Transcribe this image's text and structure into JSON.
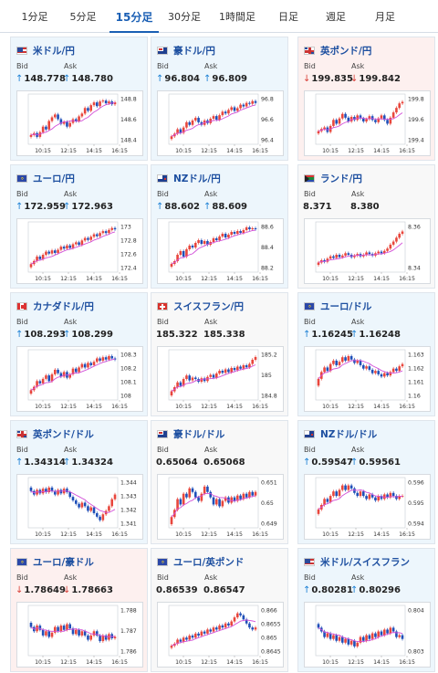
{
  "tabs": [
    {
      "label": "1分足",
      "active": false
    },
    {
      "label": "5分足",
      "active": false
    },
    {
      "label": "15分足",
      "active": true
    },
    {
      "label": "30分足",
      "active": false
    },
    {
      "label": "1時間足",
      "active": false
    },
    {
      "label": "日足",
      "active": false
    },
    {
      "label": "週足",
      "active": false
    },
    {
      "label": "月足",
      "active": false
    }
  ],
  "colors": {
    "up_candle": "#e8463c",
    "down_candle": "#1f4fb8",
    "avg_line": "#d24fd8",
    "accent": "#1a5fb4"
  },
  "labels": {
    "bid": "Bid",
    "ask": "Ask"
  },
  "cards": [
    {
      "pair": "米ドル/円",
      "flag": "us",
      "trend": "up",
      "bid": "148.778",
      "ask": "148.780",
      "chart_data": {
        "type": "candlestick",
        "x_ticks": [
          "10:15",
          "12:15",
          "14:15",
          "16:15"
        ],
        "y_ticks": [
          "148.8",
          "148.6",
          "148.4"
        ],
        "closes": [
          148.43,
          148.45,
          148.41,
          148.46,
          148.52,
          148.49,
          148.58,
          148.62,
          148.65,
          148.6,
          148.55,
          148.57,
          148.52,
          148.56,
          148.6,
          148.58,
          148.63,
          148.66,
          148.72,
          148.69,
          148.75,
          148.78,
          148.74,
          148.79,
          148.8,
          148.77,
          148.79,
          148.76,
          148.78
        ],
        "ylim": [
          148.35,
          148.85
        ]
      }
    },
    {
      "pair": "豪ドル/円",
      "flag": "au",
      "trend": "up",
      "bid": "96.804",
      "ask": "96.809",
      "chart_data": {
        "type": "candlestick",
        "x_ticks": [
          "10:15",
          "12:15",
          "14:15",
          "16:15"
        ],
        "y_ticks": [
          "96.8",
          "96.6",
          "96.4"
        ],
        "closes": [
          96.42,
          96.45,
          96.5,
          96.46,
          96.52,
          96.58,
          96.55,
          96.6,
          96.63,
          96.58,
          96.55,
          96.6,
          96.57,
          96.62,
          96.65,
          96.61,
          96.66,
          96.7,
          96.68,
          96.72,
          96.75,
          96.71,
          96.74,
          96.78,
          96.76,
          96.8,
          96.79,
          96.82,
          96.8
        ],
        "ylim": [
          96.35,
          96.88
        ]
      }
    },
    {
      "pair": "英ポンド/円",
      "flag": "gb",
      "trend": "down",
      "bid": "199.835",
      "ask": "199.842",
      "chart_data": {
        "type": "candlestick",
        "x_ticks": [
          "10:15",
          "12:15",
          "14:15",
          "16:15"
        ],
        "y_ticks": [
          "199.8",
          "199.6",
          "199.4"
        ],
        "closes": [
          199.45,
          199.48,
          199.5,
          199.44,
          199.52,
          199.6,
          199.55,
          199.62,
          199.68,
          199.63,
          199.58,
          199.64,
          199.6,
          199.66,
          199.62,
          199.58,
          199.61,
          199.65,
          199.6,
          199.57,
          199.62,
          199.66,
          199.6,
          199.55,
          199.63,
          199.7,
          199.76,
          199.82,
          199.84
        ],
        "ylim": [
          199.3,
          199.92
        ]
      }
    },
    {
      "pair": "ユーロ/円",
      "flag": "eu",
      "trend": "up",
      "bid": "172.959",
      "ask": "172.963",
      "chart_data": {
        "type": "candlestick",
        "x_ticks": [
          "10:15",
          "12:15",
          "14:15",
          "16:15"
        ],
        "y_ticks": [
          "173",
          "172.8",
          "172.6",
          "172.4"
        ],
        "closes": [
          172.4,
          172.45,
          172.52,
          172.48,
          172.55,
          172.6,
          172.57,
          172.62,
          172.58,
          172.63,
          172.68,
          172.65,
          172.7,
          172.66,
          172.72,
          172.75,
          172.71,
          172.78,
          172.82,
          172.79,
          172.84,
          172.88,
          172.85,
          172.9,
          172.93,
          172.9,
          172.95,
          172.98,
          172.96
        ],
        "ylim": [
          172.3,
          173.05
        ]
      }
    },
    {
      "pair": "NZドル/円",
      "flag": "nz",
      "trend": "up",
      "bid": "88.602",
      "ask": "88.609",
      "chart_data": {
        "type": "candlestick",
        "x_ticks": [
          "10:15",
          "12:15",
          "14:15",
          "16:15"
        ],
        "y_ticks": [
          "88.6",
          "88.4",
          "88.2"
        ],
        "closes": [
          88.22,
          88.25,
          88.32,
          88.36,
          88.3,
          88.38,
          88.42,
          88.4,
          88.45,
          88.48,
          88.44,
          88.47,
          88.43,
          88.46,
          88.5,
          88.48,
          88.52,
          88.55,
          88.51,
          88.54,
          88.57,
          88.55,
          88.58,
          88.56,
          88.59,
          88.62,
          88.6,
          88.61,
          88.6
        ],
        "ylim": [
          88.15,
          88.66
        ]
      }
    },
    {
      "pair": "ランド/円",
      "flag": "za",
      "trend": "flat",
      "bid": "8.371",
      "ask": "8.380",
      "chart_data": {
        "type": "candlestick",
        "x_ticks": [
          "10:15",
          "12:15",
          "14:15",
          "16:15"
        ],
        "y_ticks": [
          "8.36",
          "8.34"
        ],
        "closes": [
          8.335,
          8.338,
          8.336,
          8.34,
          8.343,
          8.341,
          8.345,
          8.342,
          8.344,
          8.347,
          8.345,
          8.342,
          8.344,
          8.346,
          8.343,
          8.345,
          8.348,
          8.346,
          8.344,
          8.347,
          8.349,
          8.347,
          8.35,
          8.353,
          8.358,
          8.362,
          8.367,
          8.372,
          8.375
        ],
        "ylim": [
          8.325,
          8.385
        ]
      }
    },
    {
      "pair": "カナダドル/円",
      "flag": "ca",
      "trend": "up",
      "bid": "108.293",
      "ask": "108.299",
      "chart_data": {
        "type": "candlestick",
        "x_ticks": [
          "10:15",
          "12:15",
          "14:15",
          "16:15"
        ],
        "y_ticks": [
          "108.3",
          "108.2",
          "108.1",
          "108"
        ],
        "closes": [
          108.02,
          108.05,
          108.1,
          108.08,
          108.12,
          108.15,
          108.1,
          108.16,
          108.2,
          108.17,
          108.14,
          108.18,
          108.13,
          108.16,
          108.21,
          108.18,
          108.22,
          108.25,
          108.22,
          108.26,
          108.24,
          108.27,
          108.3,
          108.28,
          108.31,
          108.29,
          108.32,
          108.3,
          108.29
        ],
        "ylim": [
          107.95,
          108.36
        ]
      }
    },
    {
      "pair": "スイスフラン/円",
      "flag": "ch",
      "trend": "flat",
      "bid": "185.322",
      "ask": "185.338",
      "chart_data": {
        "type": "candlestick",
        "x_ticks": [
          "10:15",
          "12:15",
          "14:15",
          "16:15"
        ],
        "y_ticks": [
          "185.2",
          "185",
          "184.8"
        ],
        "closes": [
          184.82,
          184.88,
          184.95,
          184.9,
          185.0,
          185.05,
          184.98,
          185.02,
          185.0,
          184.96,
          185.01,
          184.97,
          185.03,
          185.06,
          185.02,
          185.08,
          185.12,
          185.09,
          185.14,
          185.1,
          185.16,
          185.13,
          185.18,
          185.15,
          185.2,
          185.17,
          185.22,
          185.28,
          185.32
        ],
        "ylim": [
          184.72,
          185.4
        ]
      }
    },
    {
      "pair": "ユーロ/ドル",
      "flag": "eu",
      "trend": "up",
      "bid": "1.16245",
      "ask": "1.16248",
      "chart_data": {
        "type": "candlestick",
        "x_ticks": [
          "10:15",
          "12:15",
          "14:15",
          "16:15"
        ],
        "y_ticks": [
          "1.163",
          "1.162",
          "1.161",
          "1.16"
        ],
        "closes": [
          1.1612,
          1.1618,
          1.1622,
          1.1619,
          1.1625,
          1.1628,
          1.1624,
          1.1627,
          1.1631,
          1.1628,
          1.1632,
          1.1629,
          1.1626,
          1.1628,
          1.1624,
          1.1621,
          1.1623,
          1.162,
          1.1617,
          1.1619,
          1.1616,
          1.1614,
          1.1617,
          1.1615,
          1.1618,
          1.1621,
          1.1619,
          1.1623,
          1.1625
        ],
        "ylim": [
          1.1595,
          1.1636
        ]
      }
    },
    {
      "pair": "英ポンド/ドル",
      "flag": "gb",
      "trend": "up",
      "bid": "1.34314",
      "ask": "1.34324",
      "chart_data": {
        "type": "candlestick",
        "x_ticks": [
          "10:15",
          "12:15",
          "14:15",
          "16:15"
        ],
        "y_ticks": [
          "1.344",
          "1.343",
          "1.342",
          "1.341"
        ],
        "closes": [
          1.3435,
          1.3432,
          1.3436,
          1.3433,
          1.3437,
          1.3434,
          1.3438,
          1.3435,
          1.3432,
          1.3436,
          1.3433,
          1.3437,
          1.3434,
          1.343,
          1.3427,
          1.3424,
          1.3421,
          1.3425,
          1.3422,
          1.3418,
          1.3421,
          1.3416,
          1.3413,
          1.341,
          1.3415,
          1.3418,
          1.3422,
          1.3428,
          1.3432
        ],
        "ylim": [
          1.3405,
          1.3445
        ]
      }
    },
    {
      "pair": "豪ドル/ドル",
      "flag": "au",
      "trend": "flat",
      "bid": "0.65064",
      "ask": "0.65068",
      "chart_data": {
        "type": "candlestick",
        "x_ticks": [
          "10:15",
          "12:15",
          "14:15",
          "16:15"
        ],
        "y_ticks": [
          "0.651",
          "0.65",
          "0.649"
        ],
        "closes": [
          0.6492,
          0.6496,
          0.6502,
          0.6499,
          0.6505,
          0.6503,
          0.6508,
          0.6506,
          0.6503,
          0.6501,
          0.6505,
          0.6509,
          0.6506,
          0.6503,
          0.6499,
          0.6502,
          0.6498,
          0.6501,
          0.6503,
          0.65,
          0.6503,
          0.6501,
          0.6504,
          0.6502,
          0.6505,
          0.6503,
          0.6506,
          0.6504,
          0.6506
        ],
        "ylim": [
          0.6487,
          0.6513
        ]
      }
    },
    {
      "pair": "NZドル/ドル",
      "flag": "nz",
      "trend": "up",
      "bid": "0.59547",
      "ask": "0.59561",
      "chart_data": {
        "type": "candlestick",
        "x_ticks": [
          "10:15",
          "12:15",
          "14:15",
          "16:15"
        ],
        "y_ticks": [
          "0.596",
          "0.595",
          "0.594"
        ],
        "closes": [
          0.5946,
          0.5949,
          0.5953,
          0.5951,
          0.5955,
          0.5958,
          0.5955,
          0.5959,
          0.5962,
          0.5959,
          0.5962,
          0.596,
          0.5957,
          0.5955,
          0.5958,
          0.5955,
          0.5953,
          0.5956,
          0.5954,
          0.5952,
          0.5955,
          0.5953,
          0.5956,
          0.5954,
          0.5957,
          0.5955,
          0.5953,
          0.5955,
          0.5955
        ],
        "ylim": [
          0.5935,
          0.5966
        ]
      }
    },
    {
      "pair": "ユーロ/豪ドル",
      "flag": "eu",
      "trend": "down",
      "bid": "1.78649",
      "ask": "1.78663",
      "chart_data": {
        "type": "candlestick",
        "x_ticks": [
          "10:15",
          "12:15",
          "14:15",
          "16:15"
        ],
        "y_ticks": [
          "1.788",
          "1.787",
          "1.786"
        ],
        "closes": [
          1.7872,
          1.7869,
          1.7873,
          1.787,
          1.7866,
          1.7869,
          1.7865,
          1.7868,
          1.7872,
          1.7869,
          1.7873,
          1.787,
          1.7874,
          1.7871,
          1.7867,
          1.787,
          1.7866,
          1.7869,
          1.7866,
          1.7863,
          1.7866,
          1.7869,
          1.7866,
          1.7862,
          1.7866,
          1.7863,
          1.7867,
          1.7864,
          1.7865
        ],
        "ylim": [
          1.7853,
          1.7886
        ]
      }
    },
    {
      "pair": "ユーロ/英ポンド",
      "flag": "eu",
      "trend": "flat",
      "bid": "0.86539",
      "ask": "0.86547",
      "chart_data": {
        "type": "candlestick",
        "x_ticks": [
          "10:15",
          "12:15",
          "14:15",
          "16:15"
        ],
        "y_ticks": [
          "0.866",
          "0.8655",
          "0.865",
          "0.8645"
        ],
        "closes": [
          0.8645,
          0.8646,
          0.8648,
          0.8647,
          0.8649,
          0.8648,
          0.865,
          0.8649,
          0.8651,
          0.865,
          0.8652,
          0.8651,
          0.8653,
          0.8652,
          0.8654,
          0.8653,
          0.8655,
          0.8654,
          0.8656,
          0.8655,
          0.8657,
          0.8659,
          0.8661,
          0.866,
          0.8658,
          0.8656,
          0.8654,
          0.8653,
          0.8654
        ],
        "ylim": [
          0.8641,
          0.8664
        ]
      }
    },
    {
      "pair": "米ドル/スイスフラン",
      "flag": "us",
      "trend": "up",
      "bid": "0.80281",
      "ask": "0.80296",
      "chart_data": {
        "type": "candlestick",
        "x_ticks": [
          "10:15",
          "12:15",
          "14:15",
          "16:15"
        ],
        "y_ticks": [
          "0.804",
          "0.803"
        ],
        "closes": [
          0.8034,
          0.8032,
          0.8029,
          0.8031,
          0.8028,
          0.803,
          0.8027,
          0.8029,
          0.8026,
          0.8028,
          0.8025,
          0.8027,
          0.8024,
          0.8026,
          0.8029,
          0.8027,
          0.803,
          0.8028,
          0.8031,
          0.8029,
          0.8032,
          0.803,
          0.8033,
          0.8031,
          0.8034,
          0.8032,
          0.8029,
          0.803,
          0.8028
        ],
        "ylim": [
          0.802,
          0.8045
        ]
      }
    }
  ]
}
